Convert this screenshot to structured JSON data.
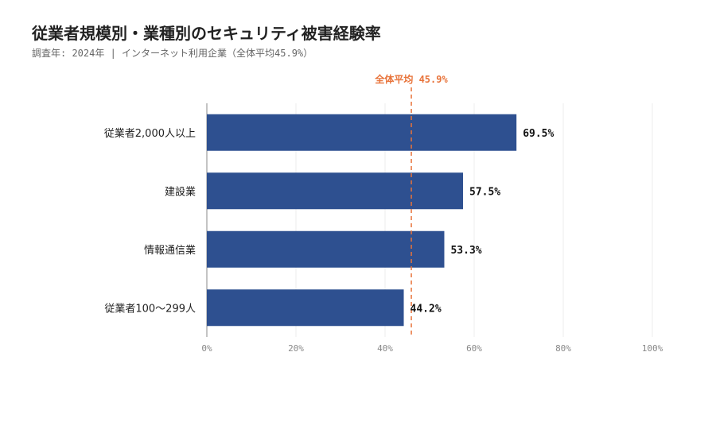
{
  "chart_data": {
    "type": "bar",
    "orientation": "horizontal",
    "title": "従業者規模別・業種別のセキュリティ被害経験率",
    "subtitle": "調査年: 2024年 | インターネット利用企業（全体平均45.9%）",
    "categories": [
      "従業者2,000人以上",
      "建設業",
      "情報通信業",
      "従業者100～299人"
    ],
    "values": [
      69.5,
      57.5,
      53.3,
      44.2
    ],
    "value_labels": [
      "69.5%",
      "57.5%",
      "53.3%",
      "44.2%"
    ],
    "xlim": [
      0,
      100
    ],
    "ticks": [
      0,
      20,
      40,
      60,
      80,
      100
    ],
    "tick_labels": [
      "0%",
      "20%",
      "40%",
      "60%",
      "80%",
      "100%"
    ],
    "grid": true,
    "reference_line": {
      "value": 45.9,
      "label": "全体平均 45.9%"
    },
    "colors": {
      "bar": "#2e5090",
      "reference": "#e8733a",
      "grid": "#ececec",
      "axis": "#888888"
    }
  }
}
